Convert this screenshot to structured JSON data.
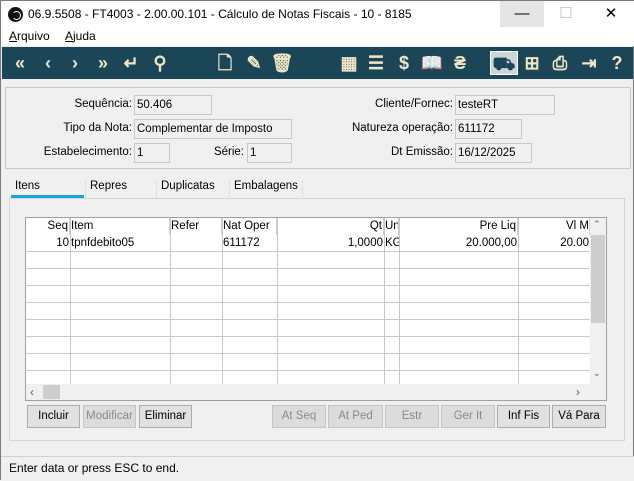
{
  "window": {
    "title": "06.9.5508 - FT4003 - 2.00.00.101 - Cálculo de Notas Fiscais - 10 - 8185",
    "minimize": "—",
    "maximize": "☐",
    "close": "✕"
  },
  "menu": [
    {
      "label": "Arquivo",
      "accel": "A"
    },
    {
      "label": "Ajuda",
      "accel": "A"
    }
  ],
  "toolbar": {
    "bg": "#1b4658",
    "icons": [
      "first-icon",
      "prev-icon",
      "next-icon",
      "last-icon",
      "goto-icon",
      "search-icon",
      "new-doc-icon",
      "edit-doc-icon",
      "delete-icon",
      "calculator-icon",
      "invoice-icon",
      "dollar-icon",
      "book-icon",
      "money-doc-icon",
      "truck-icon",
      "hierarchy-icon",
      "print-icon",
      "exit-icon",
      "help-icon"
    ]
  },
  "header": {
    "sequencia": {
      "label": "Sequência:",
      "value": "50.406"
    },
    "tipo_nota": {
      "label": "Tipo da Nota:",
      "value": "Complementar de Imposto"
    },
    "estabelecimento": {
      "label": "Estabelecimento:",
      "value": "1"
    },
    "serie": {
      "label": "Série:",
      "value": "1"
    },
    "cliente": {
      "label": "Cliente/Fornec:",
      "value": "testeRT"
    },
    "natureza": {
      "label": "Natureza operação:",
      "value": "611172"
    },
    "dt_emissao": {
      "label": "Dt Emissão:",
      "value": "16/12/2025"
    }
  },
  "tabs": [
    {
      "label": "Itens",
      "active": true
    },
    {
      "label": "Repres"
    },
    {
      "label": "Duplicatas"
    },
    {
      "label": "Embalagens"
    }
  ],
  "grid": {
    "columns": [
      "Seq",
      "Item",
      "Refer",
      "Nat Oper",
      "Qt",
      "Un",
      "Pre Liq",
      "Vl M"
    ],
    "rows": [
      [
        "10",
        "tpnfdebito05",
        "",
        "611172",
        "1,0000",
        "KG",
        "20.000,00",
        "20.00"
      ]
    ]
  },
  "buttons": [
    {
      "label": "Incluir",
      "enabled": true
    },
    {
      "label": "Modificar",
      "enabled": false
    },
    {
      "label": "Eliminar",
      "enabled": true
    },
    {
      "label": "At Seq",
      "enabled": false
    },
    {
      "label": "At Ped",
      "enabled": false
    },
    {
      "label": "Estr",
      "enabled": false
    },
    {
      "label": "Ger It",
      "enabled": false
    },
    {
      "label": "Inf Fis",
      "enabled": true
    },
    {
      "label": "Vá Para",
      "enabled": true
    }
  ],
  "status": "Enter data or press ESC to end."
}
